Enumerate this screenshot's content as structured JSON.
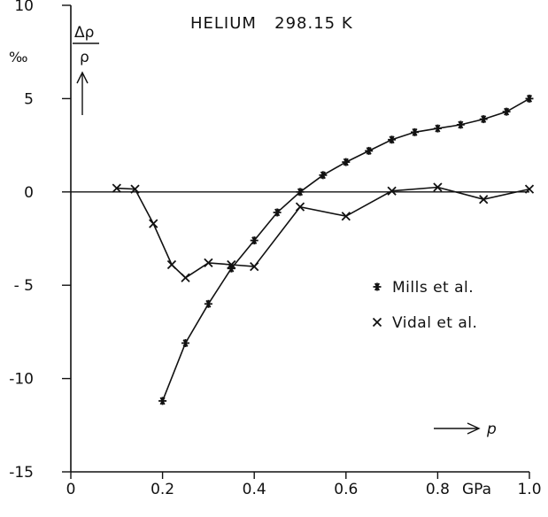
{
  "chart_data": {
    "type": "line",
    "title": "HELIUM   298.15 K",
    "ylabel_unit": "‰",
    "ylabel_numerator": "Δρ",
    "ylabel_denominator": "ρ",
    "ylabel_arrow": "↑",
    "xlabel": "p",
    "xlabel_arrow": "⟶",
    "x_unit": "GPa",
    "xlim": [
      0,
      1.0
    ],
    "ylim": [
      -15,
      10
    ],
    "x_ticks": [
      {
        "value": 0,
        "label": "0"
      },
      {
        "value": 0.2,
        "label": "0.2"
      },
      {
        "value": 0.4,
        "label": "0.4"
      },
      {
        "value": 0.6,
        "label": "0.6"
      },
      {
        "value": 0.8,
        "label": "0.8"
      },
      {
        "value": 1.0,
        "label": "1.0"
      }
    ],
    "y_ticks": [
      {
        "value": 10,
        "label": "10"
      },
      {
        "value": 5,
        "label": "5"
      },
      {
        "value": 0,
        "label": "0"
      },
      {
        "value": -5,
        "label": "- 5"
      },
      {
        "value": -10,
        "label": "-10"
      },
      {
        "value": -15,
        "label": "-15"
      }
    ],
    "series": [
      {
        "name": "Mills et al.",
        "marker": "asterisk",
        "x": [
          0.2,
          0.25,
          0.3,
          0.35,
          0.4,
          0.45,
          0.5,
          0.55,
          0.6,
          0.65,
          0.7,
          0.75,
          0.8,
          0.85,
          0.9,
          0.95,
          1.0
        ],
        "y": [
          -11.2,
          -8.1,
          -6.0,
          -4.1,
          -2.6,
          -1.1,
          0.0,
          0.9,
          1.6,
          2.2,
          2.8,
          3.2,
          3.4,
          3.6,
          3.9,
          4.3,
          5.0
        ]
      },
      {
        "name": "Vidal et al.",
        "marker": "x",
        "x": [
          0.1,
          0.14,
          0.18,
          0.22,
          0.25,
          0.3,
          0.35,
          0.4,
          0.5,
          0.6,
          0.7,
          0.8,
          0.9,
          1.0
        ],
        "y": [
          0.2,
          0.15,
          -1.7,
          -3.9,
          -4.6,
          -3.8,
          -3.9,
          -4.0,
          -0.8,
          -1.3,
          0.05,
          0.25,
          -0.4,
          0.15
        ]
      }
    ],
    "zero_line": true,
    "grid": false,
    "legend_position": "right"
  }
}
